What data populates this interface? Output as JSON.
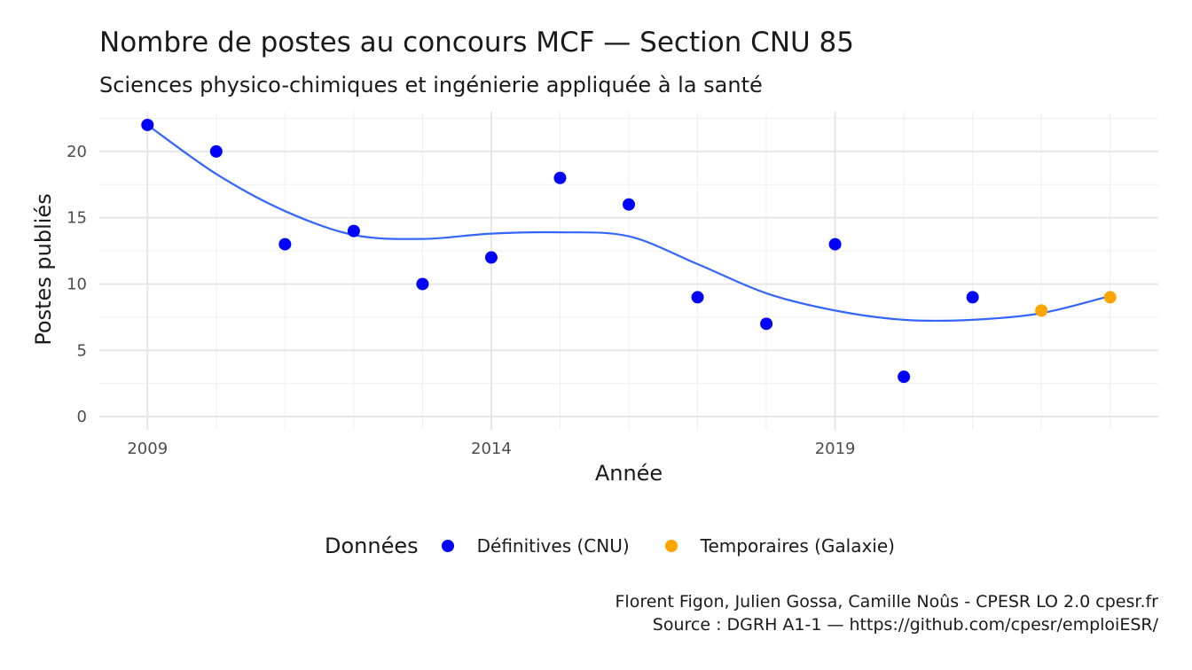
{
  "chart_data": {
    "type": "scatter",
    "title": "Nombre de postes au concours MCF  —  Section CNU 85",
    "subtitle": "Sciences physico-chimiques et ingénierie appliquée à la santé",
    "xlabel": "Année",
    "ylabel": "Postes publiés",
    "xlim": [
      2008.3,
      2023.7
    ],
    "ylim": [
      -1,
      23
    ],
    "x_ticks": [
      2009,
      2014,
      2019
    ],
    "y_ticks": [
      0,
      5,
      10,
      15,
      20
    ],
    "grid": true,
    "legend": {
      "title": "Données",
      "placement": "bottom",
      "entries": [
        {
          "label": "Définitives (CNU)",
          "color": "#0000ff"
        },
        {
          "label": "Temporaires (Galaxie)",
          "color": "#ffa500"
        }
      ]
    },
    "series": [
      {
        "name": "Définitives (CNU)",
        "color": "#0000ff",
        "x": [
          2009,
          2010,
          2011,
          2012,
          2013,
          2014,
          2015,
          2016,
          2017,
          2018,
          2019,
          2020,
          2021
        ],
        "y": [
          22,
          20,
          13,
          14,
          10,
          12,
          18,
          16,
          9,
          7,
          13,
          3,
          9
        ]
      },
      {
        "name": "Temporaires (Galaxie)",
        "color": "#ffa500",
        "x": [
          2022,
          2023
        ],
        "y": [
          8,
          9
        ]
      }
    ],
    "trend": {
      "color": "#3366ff",
      "x": [
        2009,
        2010,
        2011,
        2012,
        2013,
        2014,
        2015,
        2016,
        2017,
        2018,
        2019,
        2020,
        2021,
        2022,
        2023
      ],
      "y": [
        22.0,
        18.3,
        15.5,
        13.7,
        13.4,
        13.8,
        13.9,
        13.6,
        11.5,
        9.3,
        8.0,
        7.3,
        7.3,
        7.8,
        9.1
      ]
    },
    "caption": [
      "Florent Figon, Julien Gossa, Camille Noûs - CPESR LO 2.0 cpesr.fr",
      "Source : DGRH A1-1 — https://github.com/cpesr/emploiESR/"
    ]
  }
}
